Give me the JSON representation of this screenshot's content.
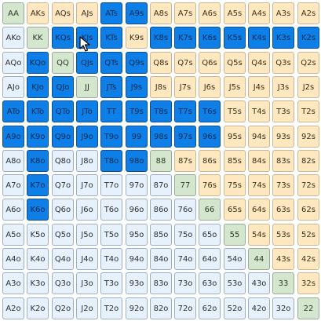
{
  "grid": {
    "rows": [
      [
        "AA",
        "AKs",
        "AQs",
        "AJs",
        "ATs",
        "A9s",
        "A8s",
        "A7s",
        "A6s",
        "A5s",
        "A4s",
        "A3s",
        "A2s"
      ],
      [
        "AKo",
        "KK",
        "KQs",
        "KJs",
        "KTs",
        "K9s",
        "K8s",
        "K7s",
        "K6s",
        "K5s",
        "K4s",
        "K3s",
        "K2s"
      ],
      [
        "AQo",
        "KQo",
        "QQ",
        "QJs",
        "QTs",
        "Q9s",
        "Q8s",
        "Q7s",
        "Q6s",
        "Q5s",
        "Q4s",
        "Q3s",
        "Q2s"
      ],
      [
        "AJo",
        "KJo",
        "QJo",
        "JJ",
        "JTs",
        "J9s",
        "J8s",
        "J7s",
        "J6s",
        "J5s",
        "J4s",
        "J3s",
        "J2s"
      ],
      [
        "ATo",
        "KTo",
        "QTo",
        "JTo",
        "TT",
        "T9s",
        "T8s",
        "T7s",
        "T6s",
        "T5s",
        "T4s",
        "T3s",
        "T2s"
      ],
      [
        "A9o",
        "K9o",
        "Q9o",
        "J9o",
        "T9o",
        "99",
        "98s",
        "97s",
        "96s",
        "95s",
        "94s",
        "93s",
        "92s"
      ],
      [
        "A8o",
        "K8o",
        "Q8o",
        "J8o",
        "T8o",
        "98o",
        "88",
        "87s",
        "86s",
        "85s",
        "84s",
        "83s",
        "82s"
      ],
      [
        "A7o",
        "K7o",
        "Q7o",
        "J7o",
        "T7o",
        "97o",
        "87o",
        "77",
        "76s",
        "75s",
        "74s",
        "73s",
        "72s"
      ],
      [
        "A6o",
        "K6o",
        "Q6o",
        "J6o",
        "T6o",
        "96o",
        "86o",
        "76o",
        "66",
        "65s",
        "64s",
        "63s",
        "62s"
      ],
      [
        "A5o",
        "K5o",
        "Q5o",
        "J5o",
        "T5o",
        "95o",
        "85o",
        "75o",
        "65o",
        "55",
        "54s",
        "53s",
        "52s"
      ],
      [
        "A4o",
        "K4o",
        "Q4o",
        "J4o",
        "T4o",
        "94o",
        "84o",
        "74o",
        "64o",
        "54o",
        "44",
        "43s",
        "42s"
      ],
      [
        "A3o",
        "K3o",
        "Q3o",
        "J3o",
        "T3o",
        "93o",
        "83o",
        "73o",
        "63o",
        "53o",
        "43o",
        "33",
        "32s"
      ],
      [
        "A2o",
        "K2o",
        "Q2o",
        "J2o",
        "T2o",
        "92o",
        "82o",
        "72o",
        "62o",
        "52o",
        "42o",
        "32o",
        "22"
      ]
    ],
    "selected": [
      "ATs",
      "A9s",
      "KQs",
      "KJs",
      "KTs",
      "K8s",
      "K7s",
      "K6s",
      "K5s",
      "K4s",
      "K3s",
      "K2s",
      "KQo",
      "QJs",
      "QTs",
      "Q9s",
      "KJo",
      "QJo",
      "JTs",
      "J9s",
      "ATo",
      "KTo",
      "QTo",
      "JTo",
      "TT",
      "T9s",
      "T8s",
      "T7s",
      "T6s",
      "A9o",
      "K9o",
      "Q9o",
      "J9o",
      "T9o",
      "99",
      "98s",
      "97s",
      "96s",
      "K8o",
      "T8o",
      "98o",
      "K7o",
      "K6o"
    ],
    "colors": {
      "selected": "#0d7fe6",
      "pair": "#d5e6cf",
      "suited": "#ffe8bf",
      "offsuit": "#e6f1fb"
    }
  },
  "cursor": {
    "icon": "arrow-cursor-icon"
  }
}
